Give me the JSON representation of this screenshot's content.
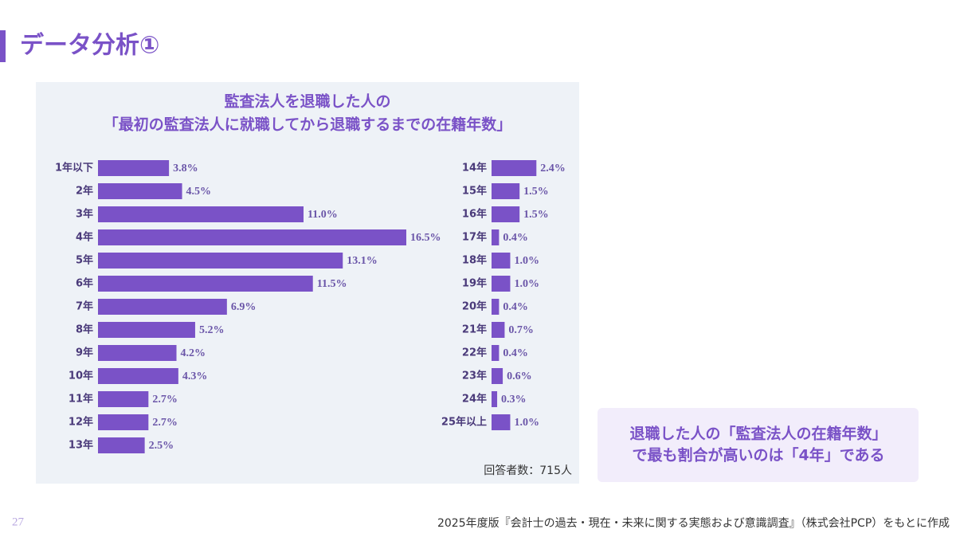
{
  "slide": {
    "title": "データ分析①",
    "page_number": "27",
    "source": "2025年度版『会計士の過去・現在・未来に関する実態および意識調査』（株式会社PCP）をもとに作成",
    "callout": [
      "退職した人の「監査法人の在籍年数」",
      "で最も割合が高いのは「4年」である"
    ]
  },
  "chart_data": [
    {
      "type": "hbar",
      "title": "監査法人を退職した人の",
      "subtitle": "「最初の監査法人に就職してから退職するまでの在籍年数」",
      "color": "#7a52c7",
      "categories": [
        "1年以下",
        "2年",
        "3年",
        "4年",
        "5年",
        "6年",
        "7年",
        "8年",
        "9年",
        "10年",
        "11年",
        "12年",
        "13年"
      ],
      "values": [
        3.8,
        4.5,
        11.0,
        16.5,
        13.1,
        11.5,
        6.9,
        5.2,
        4.2,
        4.3,
        2.7,
        2.7,
        2.5
      ],
      "value_labels": [
        "3.8%",
        "4.5%",
        "11.0%",
        "16.5%",
        "13.1%",
        "11.5%",
        "6.9%",
        "5.2%",
        "4.2%",
        "4.3%",
        "2.7%",
        "2.7%",
        "2.5%"
      ]
    },
    {
      "type": "hbar",
      "color": "#7a52c7",
      "annotation": "回答者数：715人",
      "categories": [
        "14年",
        "15年",
        "16年",
        "17年",
        "18年",
        "19年",
        "20年",
        "21年",
        "22年",
        "23年",
        "24年",
        "25年以上"
      ],
      "values": [
        2.4,
        1.5,
        1.5,
        0.4,
        1.0,
        1.0,
        0.4,
        0.7,
        0.4,
        0.6,
        0.3,
        1.0
      ],
      "value_labels": [
        "2.4%",
        "1.5%",
        "1.5%",
        "0.4%",
        "1.0%",
        "1.0%",
        "0.4%",
        "0.7%",
        "0.4%",
        "0.6%",
        "0.3%",
        "1.0%"
      ]
    }
  ]
}
